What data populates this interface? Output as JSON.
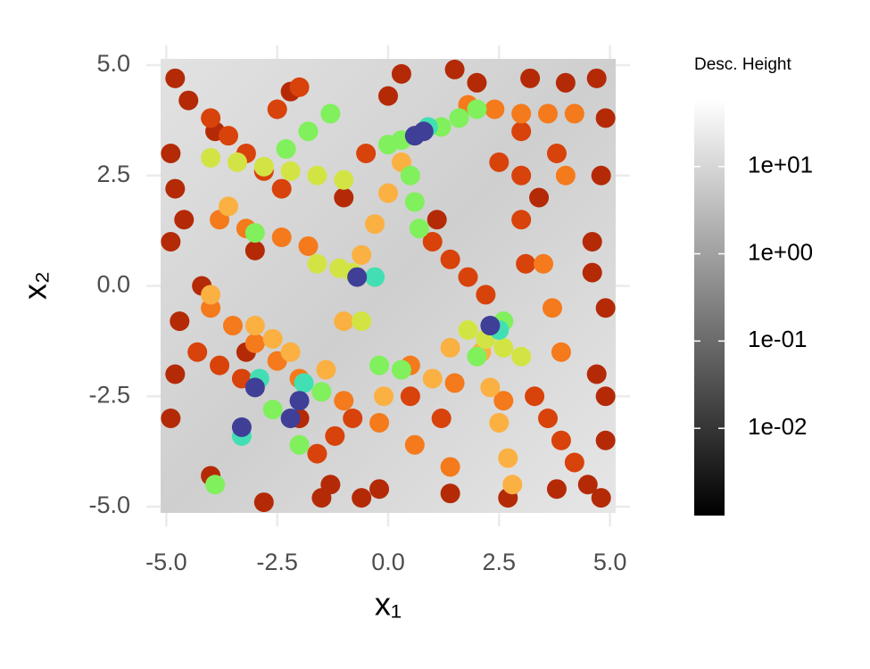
{
  "chart_data": {
    "type": "scatter",
    "xlabel": "x₁",
    "ylabel": "x₂",
    "xlim": [
      -5.45,
      5.45
    ],
    "ylim": [
      -5.45,
      5.45
    ],
    "xticks": [
      {
        "value": -5,
        "label": "-5.0"
      },
      -2.5,
      {
        "value": 0,
        "label": "0.0"
      },
      2.5,
      {
        "value": 5,
        "label": "5.0"
      }
    ],
    "yticks": [
      {
        "value": -5,
        "label": "-5.0"
      },
      -2.5,
      {
        "value": 0,
        "label": "0.0"
      },
      2.5,
      {
        "value": 5,
        "label": "5.0"
      }
    ],
    "grid": true,
    "series": [
      {
        "color": "#b42a07",
        "x": [
          -4.8,
          -4.5,
          -4.9,
          -4.6,
          -4.2,
          -3.2,
          -2.0,
          -1.3,
          -0.6,
          0.3,
          1.5,
          3.2,
          4.0,
          4.7,
          4.9,
          4.8,
          4.6,
          4.9,
          4.7,
          4.9,
          4.5,
          4.8,
          4.9,
          4.6,
          3.8,
          2.7,
          1.4,
          -0.2,
          -1.5,
          -2.8,
          -4.0,
          -4.9,
          -4.8,
          -4.7,
          -4.9,
          -4.8,
          -3.9,
          -2.2,
          0.0,
          2.0,
          3.4,
          1.1,
          -1.0,
          -3.0
        ],
        "y": [
          4.7,
          4.2,
          3.0,
          1.5,
          0.0,
          -1.5,
          -3.0,
          -4.5,
          -4.8,
          4.8,
          4.9,
          4.7,
          4.6,
          4.7,
          3.8,
          2.5,
          1.0,
          -0.5,
          -2.0,
          -3.5,
          -4.5,
          -4.8,
          -2.5,
          0.3,
          -4.6,
          -4.8,
          -4.7,
          -4.6,
          -4.8,
          -4.9,
          -4.3,
          -3.0,
          -2.0,
          -0.8,
          1.0,
          2.2,
          3.5,
          4.4,
          4.3,
          4.6,
          2.0,
          1.5,
          2.0,
          0.8
        ]
      },
      {
        "color": "#d8420b",
        "x": [
          -4.0,
          -3.6,
          -3.2,
          -2.8,
          -2.4,
          -1.6,
          -1.2,
          -0.8,
          1.0,
          1.4,
          1.8,
          2.2,
          3.0,
          3.0,
          3.0,
          3.1,
          3.3,
          3.6,
          3.9,
          4.2,
          -4.3,
          -3.8,
          -3.3,
          -2.5,
          -2.0,
          0.5,
          1.2,
          2.5,
          3.8,
          -0.5
        ],
        "y": [
          3.8,
          3.4,
          3.0,
          2.6,
          2.2,
          -3.8,
          -3.4,
          -3.0,
          1.0,
          0.6,
          0.2,
          -0.2,
          3.5,
          2.5,
          1.5,
          0.5,
          -2.5,
          -3.0,
          -3.5,
          -4.0,
          -1.5,
          -1.8,
          -2.1,
          4.0,
          4.5,
          -2.5,
          -3.0,
          2.8,
          3.0,
          3.0
        ]
      },
      {
        "color": "#f47a1c",
        "x": [
          1.8,
          2.4,
          3.0,
          3.6,
          4.2,
          -4.0,
          -3.5,
          -3.0,
          -2.5,
          -2.0,
          -1.0,
          -0.2,
          0.6,
          1.4,
          3.5,
          3.7,
          3.9,
          4.0,
          -3.8,
          -3.2,
          -2.4,
          -1.8,
          0.5,
          1.5,
          2.6
        ],
        "y": [
          4.1,
          4.0,
          3.9,
          3.9,
          3.9,
          -0.5,
          -0.9,
          -1.3,
          -1.7,
          -2.1,
          -2.6,
          -3.1,
          -3.6,
          -4.1,
          0.5,
          -0.5,
          -1.5,
          2.5,
          1.5,
          1.3,
          1.1,
          0.9,
          -1.8,
          -2.2,
          -2.6
        ]
      },
      {
        "color": "#fbb042",
        "x": [
          -0.6,
          -0.3,
          0.0,
          0.3,
          0.6,
          2.1,
          2.3,
          2.5,
          2.7,
          2.8,
          -3.0,
          -2.6,
          -2.2,
          -4.0,
          -3.6,
          -1.4,
          -1.0,
          1.0,
          1.4,
          -0.1
        ],
        "y": [
          0.7,
          1.4,
          2.1,
          2.8,
          3.4,
          -1.5,
          -2.3,
          -3.1,
          -3.9,
          -4.5,
          -0.9,
          -1.2,
          -1.5,
          -0.2,
          1.8,
          -1.9,
          -0.8,
          -2.1,
          -1.4,
          -2.5
        ]
      },
      {
        "color": "#d2e444",
        "x": [
          -4.0,
          -3.4,
          -2.8,
          -2.2,
          -1.6,
          -1.0,
          -1.6,
          -1.1,
          -0.8,
          -0.3,
          1.8,
          2.2,
          2.6,
          3.0,
          -0.6
        ],
        "y": [
          2.9,
          2.8,
          2.7,
          2.6,
          2.5,
          2.4,
          0.5,
          0.4,
          0.3,
          0.2,
          -1.0,
          -1.2,
          -1.4,
          -1.6,
          -0.8
        ]
      },
      {
        "color": "#80f05c",
        "x": [
          -1.3,
          -1.8,
          -2.3,
          0.0,
          0.3,
          0.5,
          0.6,
          0.7,
          1.2,
          1.6,
          2.0,
          -3.0,
          -2.6,
          -2.0,
          -3.9,
          -0.2,
          0.3,
          2.0,
          2.6,
          -1.5
        ],
        "y": [
          3.9,
          3.5,
          3.1,
          3.2,
          3.3,
          2.5,
          1.9,
          1.3,
          3.6,
          3.8,
          4.0,
          1.2,
          -2.8,
          -3.6,
          -4.5,
          -1.8,
          -1.9,
          -1.6,
          -0.8,
          -2.4
        ]
      },
      {
        "color": "#42dfb4",
        "x": [
          0.9,
          -3.3,
          -2.9,
          2.5,
          -0.3,
          -1.9
        ],
        "y": [
          3.6,
          -3.4,
          -2.1,
          -1.0,
          0.2,
          -2.2
        ]
      },
      {
        "color": "#3f3f98",
        "x": [
          0.6,
          0.8,
          -0.7,
          -3.0,
          -3.3,
          -2.0,
          -2.2,
          2.3
        ],
        "y": [
          3.4,
          3.5,
          0.2,
          -2.3,
          -3.2,
          -2.6,
          -3.0,
          -0.9
        ]
      }
    ],
    "colorbar": {
      "title": "Desc. Height",
      "log": true,
      "lim": [
        0.001,
        58
      ],
      "colors": [
        "#000000",
        "#ffffff"
      ],
      "ticks": [
        {
          "value": 10,
          "label": "1e+01"
        },
        {
          "value": 1,
          "label": "1e+00"
        },
        {
          "value": 0.1,
          "label": "1e-01"
        },
        {
          "value": 0.01,
          "label": "1e-02"
        }
      ]
    }
  }
}
